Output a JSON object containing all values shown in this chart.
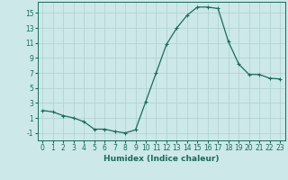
{
  "x": [
    0,
    1,
    2,
    3,
    4,
    5,
    6,
    7,
    8,
    9,
    10,
    11,
    12,
    13,
    14,
    15,
    16,
    17,
    18,
    19,
    20,
    21,
    22,
    23
  ],
  "y": [
    2.0,
    1.8,
    1.3,
    1.0,
    0.5,
    -0.5,
    -0.5,
    -0.8,
    -1.0,
    -0.6,
    3.2,
    7.0,
    10.8,
    13.0,
    14.7,
    15.8,
    15.8,
    15.6,
    11.2,
    8.2,
    6.8,
    6.8,
    6.3,
    6.2
  ],
  "line_color": "#1a6b5a",
  "marker": "+",
  "marker_size": 3,
  "marker_linewidth": 0.8,
  "line_width": 0.9,
  "background_color": "#cce8e8",
  "grid_color": "#aed0d0",
  "xlabel": "Humidex (Indice chaleur)",
  "xlim": [
    -0.5,
    23.5
  ],
  "ylim": [
    -2.0,
    16.5
  ],
  "yticks": [
    -1,
    1,
    3,
    5,
    7,
    9,
    11,
    13,
    15
  ],
  "xticks": [
    0,
    1,
    2,
    3,
    4,
    5,
    6,
    7,
    8,
    9,
    10,
    11,
    12,
    13,
    14,
    15,
    16,
    17,
    18,
    19,
    20,
    21,
    22,
    23
  ],
  "tick_color": "#1a6b5a",
  "label_color": "#1a6b5a",
  "tick_fontsize": 5.5,
  "xlabel_fontsize": 6.5,
  "xlabel_fontweight": "bold"
}
